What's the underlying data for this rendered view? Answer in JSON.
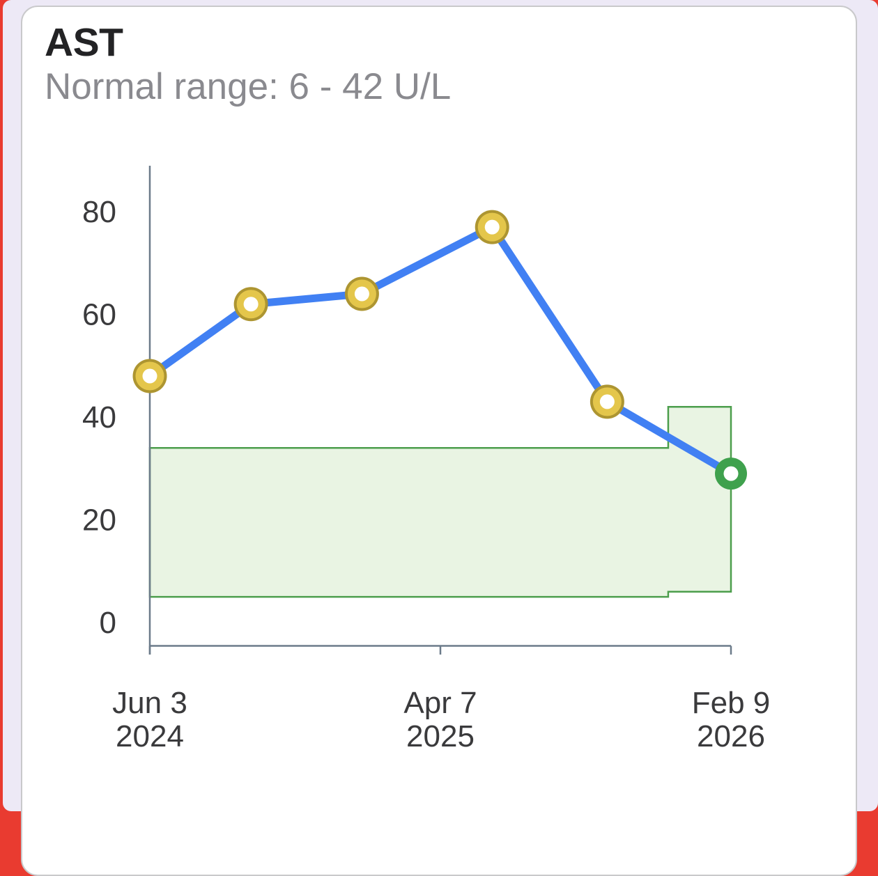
{
  "card": {
    "title": "AST",
    "subtitle": "Normal range: 6 - 42 U/L"
  },
  "chart_data": {
    "type": "line",
    "title": "AST",
    "unit": "U/L",
    "normal_range": {
      "low": 6,
      "high": 42
    },
    "ylim": [
      0,
      88
    ],
    "yticks": [
      0,
      20,
      40,
      60,
      80
    ],
    "xticks": [
      {
        "label_line1": "Jun 3",
        "label_line2": "2024",
        "pos": 0
      },
      {
        "label_line1": "Apr 7",
        "label_line2": "2025",
        "pos": 0.5
      },
      {
        "label_line1": "Feb 9",
        "label_line2": "2026",
        "pos": 1
      }
    ],
    "series": [
      {
        "name": "AST",
        "points": [
          {
            "pos": 0.0,
            "value": 48,
            "status": "out-of-range"
          },
          {
            "pos": 0.174,
            "value": 62,
            "status": "out-of-range"
          },
          {
            "pos": 0.365,
            "value": 64,
            "status": "out-of-range"
          },
          {
            "pos": 0.589,
            "value": 77,
            "status": "out-of-range"
          },
          {
            "pos": 0.787,
            "value": 43,
            "status": "out-of-range"
          },
          {
            "pos": 1.0,
            "value": 29,
            "status": "in-range"
          }
        ]
      }
    ],
    "reference_band_segments": [
      {
        "pos_start": 0.0,
        "pos_end": 0.892,
        "low": 5,
        "high": 34
      },
      {
        "pos_start": 0.892,
        "pos_end": 1.0,
        "low": 6,
        "high": 42
      }
    ],
    "legend_position": "none",
    "grid": false,
    "colors": {
      "line": "#4180F3",
      "marker_out_of_range_fill": "#E4C64B",
      "marker_out_of_range_border": "#AD9531",
      "marker_in_range": "#3FA14D",
      "band_fill": "#E9F4E3",
      "band_border": "#4C9E4C",
      "axis": "#6C7B8A",
      "tick_text": "#3A3A3C"
    }
  }
}
